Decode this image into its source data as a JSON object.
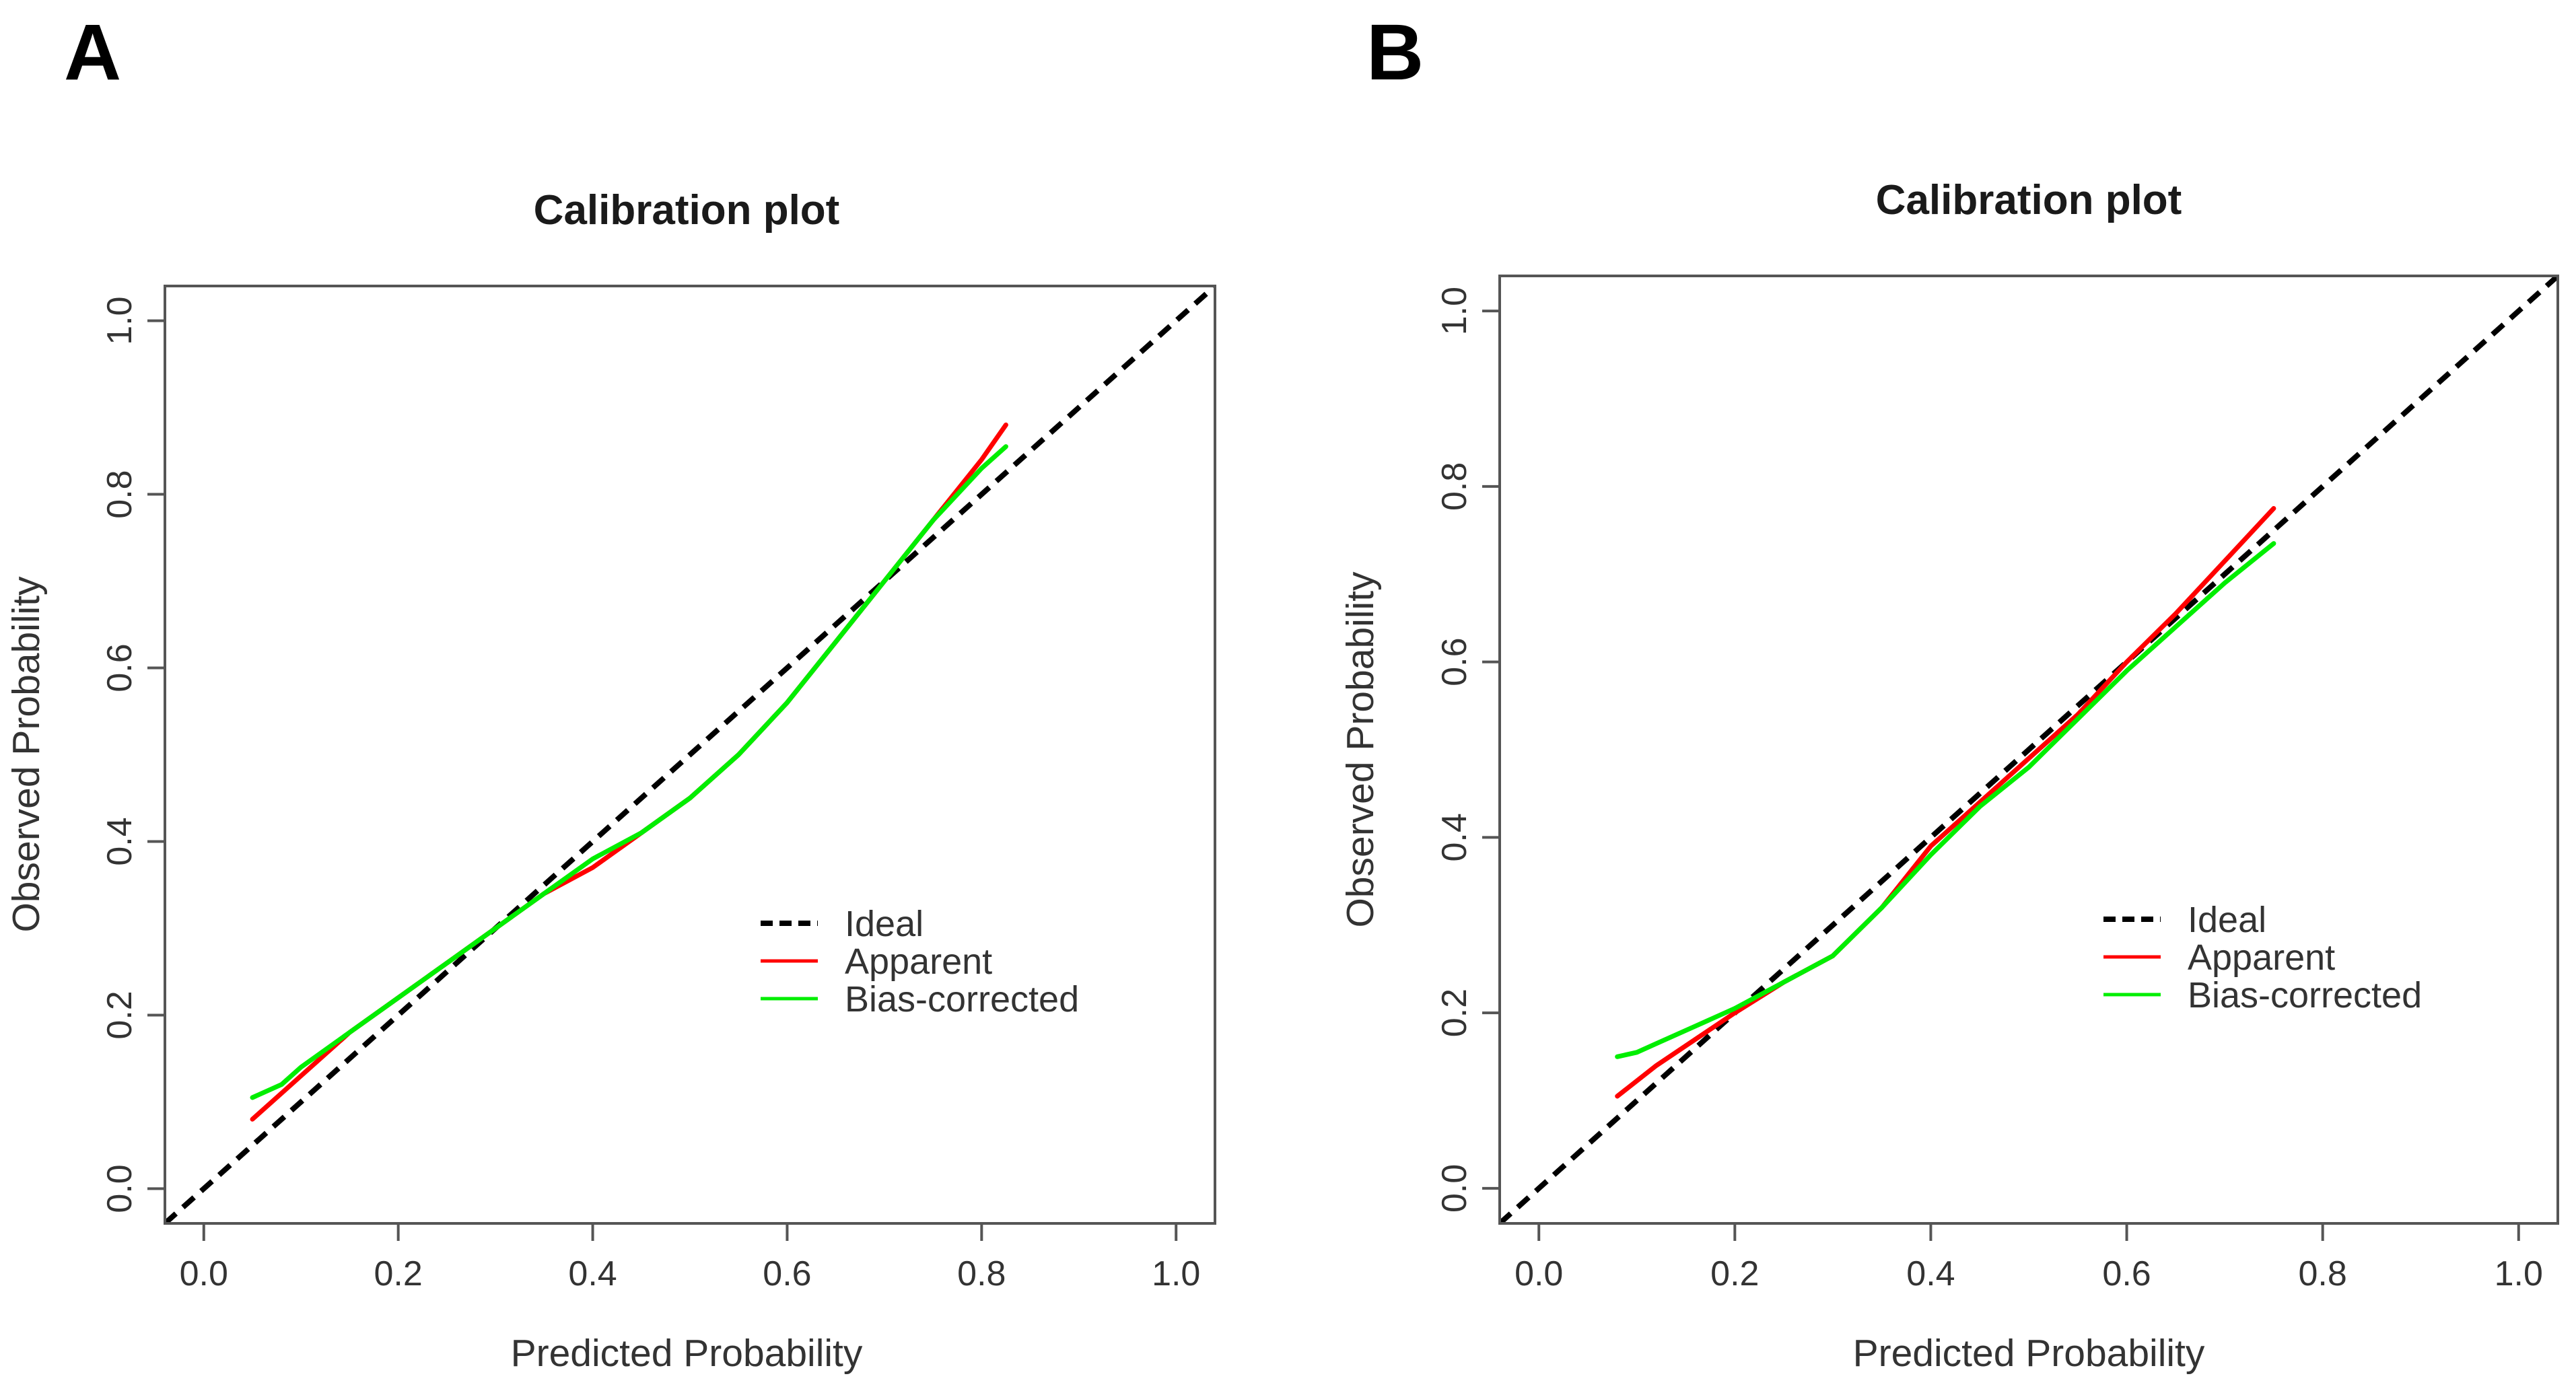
{
  "chart_data": [
    {
      "panel_label": "A",
      "type": "line",
      "title": "Calibration plot",
      "xlabel": "Predicted Probability",
      "ylabel": "Observed Probability",
      "xlim": [
        -0.04,
        1.04
      ],
      "ylim": [
        -0.04,
        1.04
      ],
      "xticks": [
        "0.0",
        "0.2",
        "0.4",
        "0.6",
        "0.8",
        "1.0"
      ],
      "yticks": [
        "0.0",
        "0.2",
        "0.4",
        "0.6",
        "0.8",
        "1.0"
      ],
      "legend_position": "center-right",
      "series": [
        {
          "name": "Ideal",
          "color": "#000000",
          "style": "dashed",
          "x": [
            -0.04,
            1.04
          ],
          "y": [
            -0.04,
            1.04
          ]
        },
        {
          "name": "Apparent",
          "color": "#ff0000",
          "style": "solid",
          "x": [
            0.05,
            0.1,
            0.15,
            0.2,
            0.25,
            0.3,
            0.35,
            0.4,
            0.45,
            0.5,
            0.55,
            0.6,
            0.65,
            0.7,
            0.75,
            0.8,
            0.825
          ],
          "y": [
            0.08,
            0.13,
            0.18,
            0.22,
            0.26,
            0.3,
            0.34,
            0.37,
            0.41,
            0.45,
            0.5,
            0.56,
            0.63,
            0.7,
            0.77,
            0.84,
            0.88
          ]
        },
        {
          "name": "Bias-corrected",
          "color": "#00ee00",
          "style": "solid",
          "x": [
            0.05,
            0.08,
            0.1,
            0.15,
            0.2,
            0.25,
            0.3,
            0.35,
            0.4,
            0.45,
            0.5,
            0.55,
            0.6,
            0.65,
            0.7,
            0.75,
            0.8,
            0.825
          ],
          "y": [
            0.105,
            0.12,
            0.14,
            0.18,
            0.22,
            0.26,
            0.3,
            0.34,
            0.38,
            0.41,
            0.45,
            0.5,
            0.56,
            0.63,
            0.7,
            0.77,
            0.83,
            0.855
          ]
        }
      ]
    },
    {
      "panel_label": "B",
      "type": "line",
      "title": "Calibration plot",
      "xlabel": "Predicted Probability",
      "ylabel": "Observed Probability",
      "xlim": [
        -0.04,
        1.04
      ],
      "ylim": [
        -0.04,
        1.04
      ],
      "xticks": [
        "0.0",
        "0.2",
        "0.4",
        "0.6",
        "0.8",
        "1.0"
      ],
      "yticks": [
        "0.0",
        "0.2",
        "0.4",
        "0.6",
        "0.8",
        "1.0"
      ],
      "legend_position": "center-right",
      "series": [
        {
          "name": "Ideal",
          "color": "#000000",
          "style": "dashed",
          "x": [
            -0.04,
            1.04
          ],
          "y": [
            -0.04,
            1.04
          ]
        },
        {
          "name": "Apparent",
          "color": "#ff0000",
          "style": "solid",
          "x": [
            0.08,
            0.12,
            0.16,
            0.2,
            0.25,
            0.3,
            0.35,
            0.4,
            0.45,
            0.5,
            0.55,
            0.6,
            0.65,
            0.7,
            0.75
          ],
          "y": [
            0.105,
            0.14,
            0.17,
            0.2,
            0.235,
            0.265,
            0.32,
            0.39,
            0.44,
            0.49,
            0.54,
            0.6,
            0.655,
            0.715,
            0.775
          ]
        },
        {
          "name": "Bias-corrected",
          "color": "#00ee00",
          "style": "solid",
          "x": [
            0.08,
            0.1,
            0.12,
            0.16,
            0.2,
            0.25,
            0.3,
            0.35,
            0.4,
            0.45,
            0.5,
            0.55,
            0.6,
            0.65,
            0.7,
            0.75
          ],
          "y": [
            0.15,
            0.155,
            0.165,
            0.185,
            0.205,
            0.235,
            0.265,
            0.32,
            0.38,
            0.435,
            0.48,
            0.535,
            0.59,
            0.64,
            0.69,
            0.735
          ]
        }
      ]
    }
  ]
}
